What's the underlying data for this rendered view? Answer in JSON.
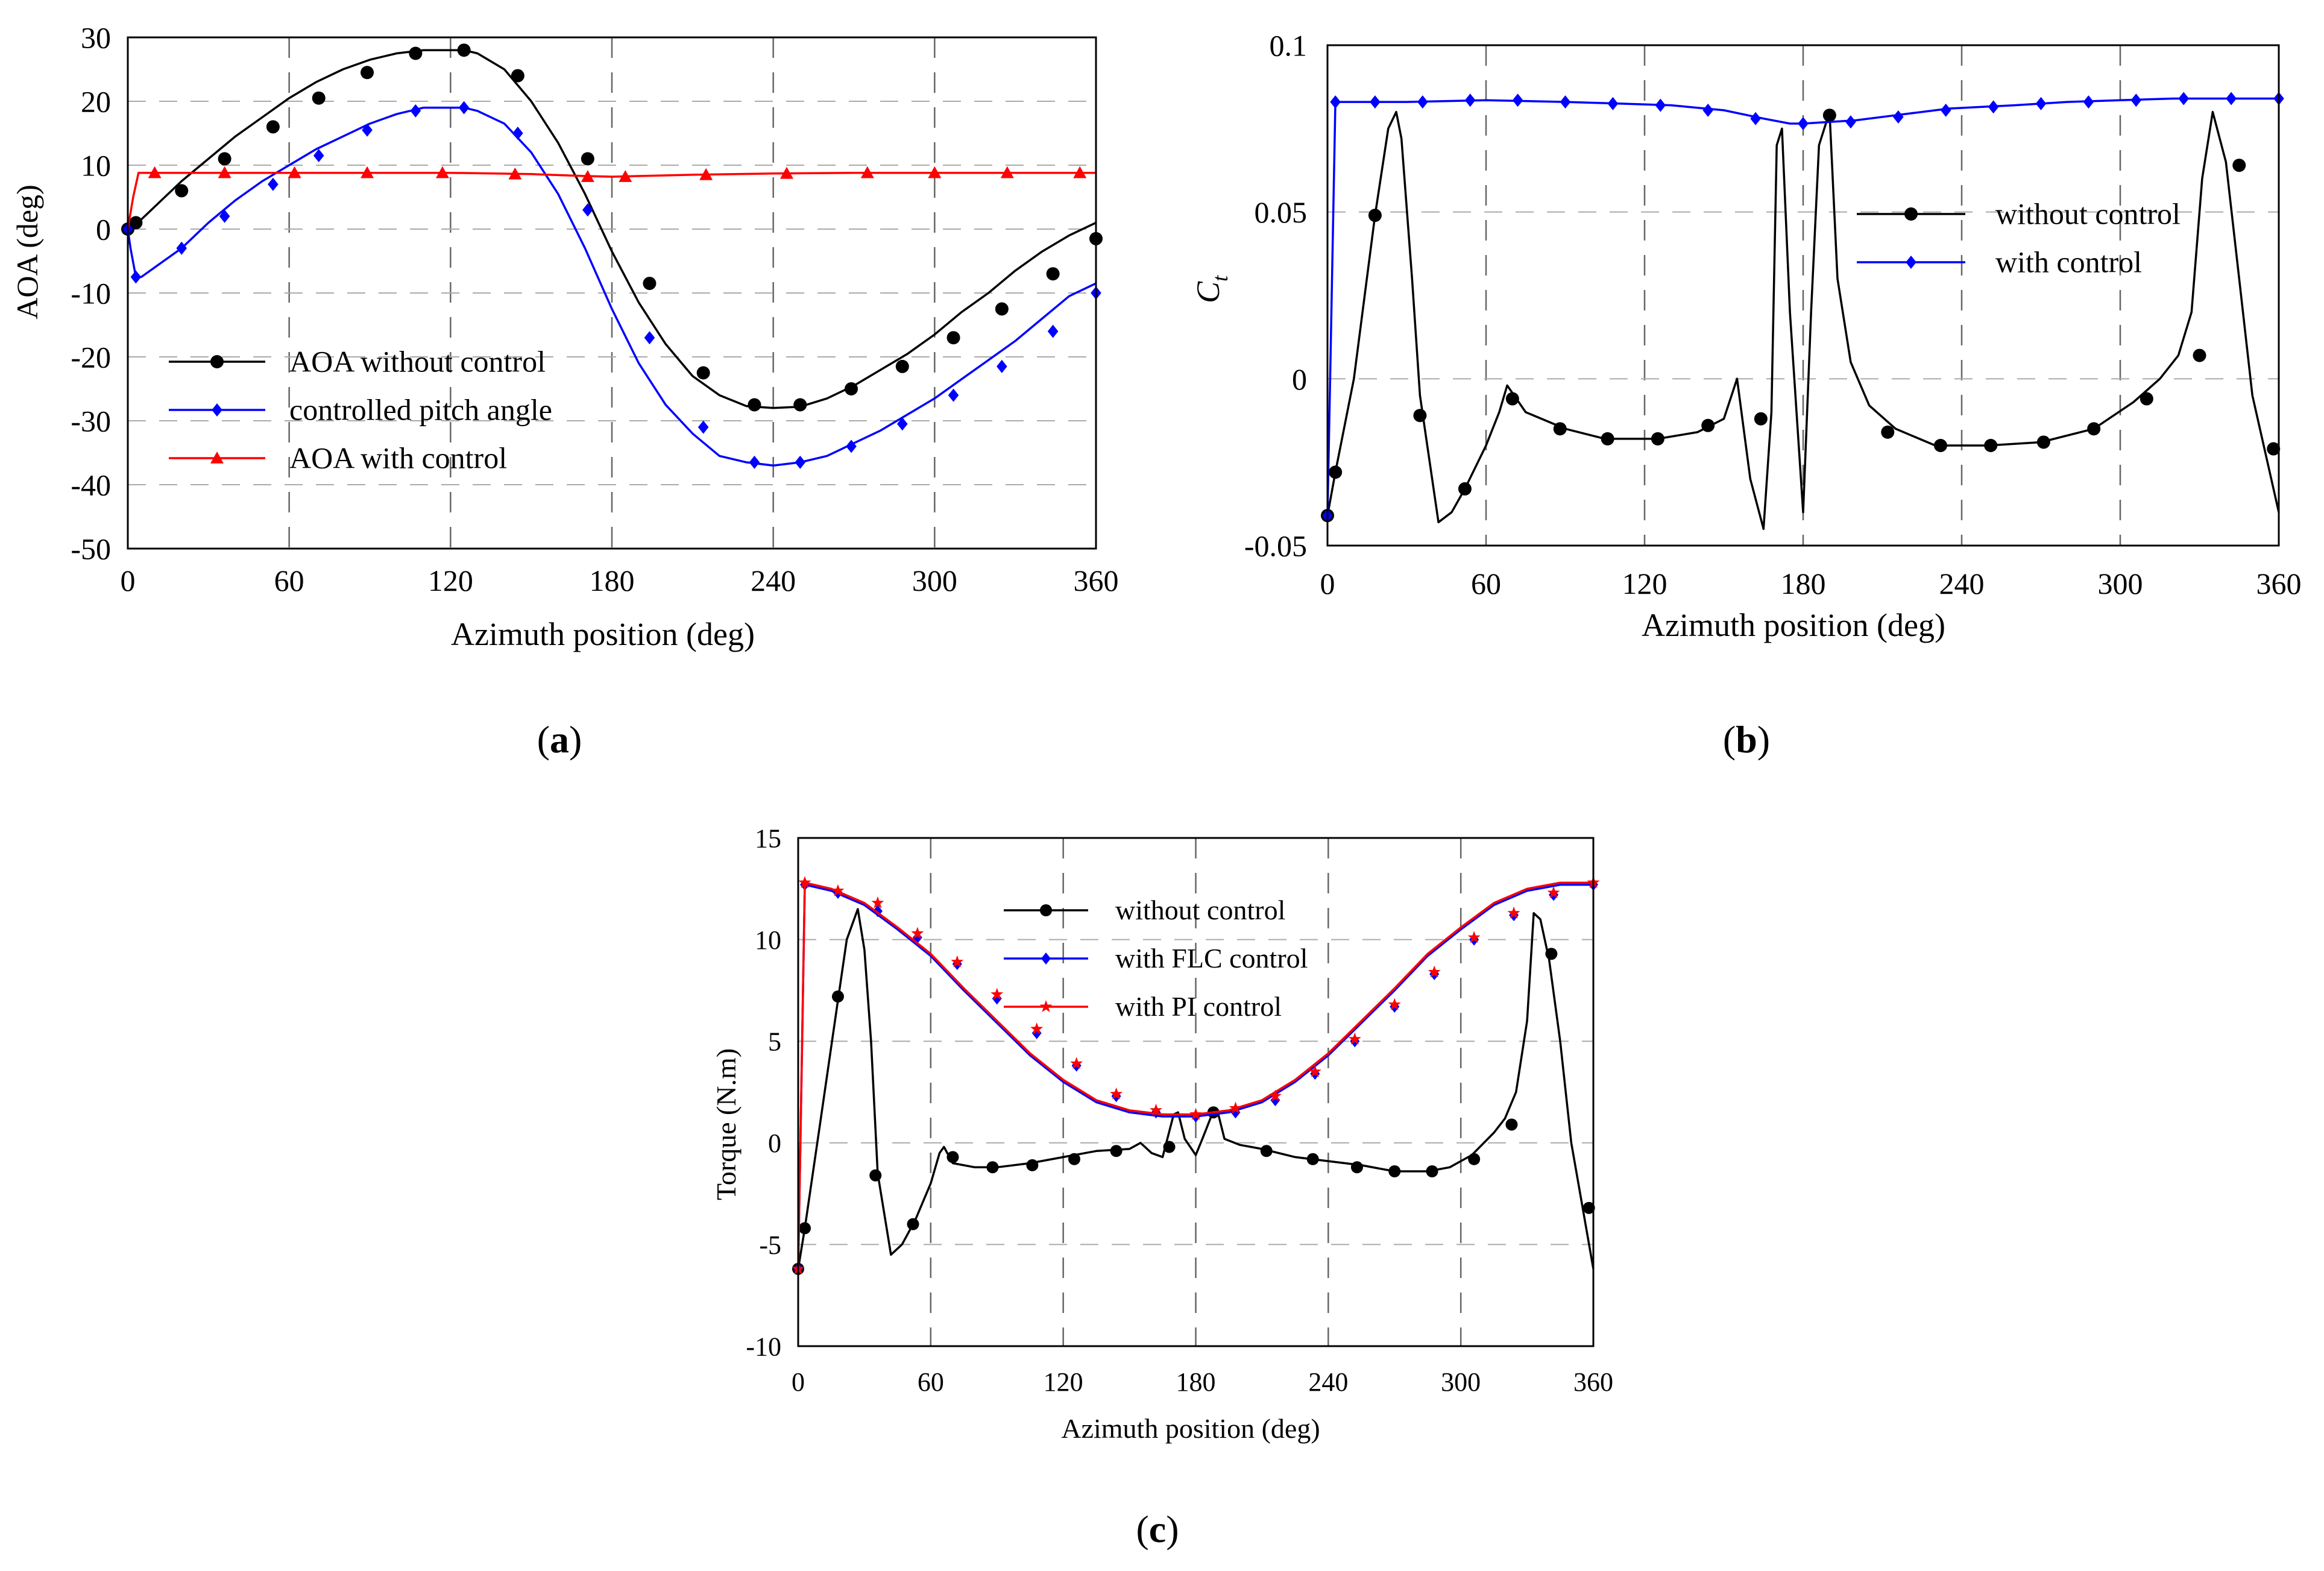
{
  "chart_data": [
    {
      "id": "a",
      "type": "line",
      "caption": "a",
      "xlabel": "Azimuth position (deg)",
      "ylabel": "AOA (deg)",
      "xlim": [
        0,
        360
      ],
      "ylim": [
        -50,
        30
      ],
      "xticks": [
        0,
        60,
        120,
        180,
        240,
        300,
        360
      ],
      "yticks": [
        30,
        20,
        10,
        0,
        -10,
        -20,
        -30,
        -40,
        -50
      ],
      "ytick_labels": [
        "30",
        "20",
        "10",
        "0",
        "-10",
        "-20",
        "-30",
        "-40",
        "-50"
      ],
      "grid_x": [
        60,
        120,
        180,
        240,
        300
      ],
      "legend_position": "lower-left",
      "series": [
        {
          "name": "AOA without control",
          "color": "#000000",
          "marker": "circle",
          "x": [
            0,
            2,
            5,
            10,
            20,
            30,
            40,
            50,
            60,
            70,
            80,
            90,
            100,
            110,
            120,
            125,
            130,
            140,
            150,
            160,
            170,
            180,
            190,
            200,
            210,
            220,
            230,
            240,
            250,
            260,
            270,
            280,
            290,
            300,
            310,
            320,
            330,
            340,
            350,
            360
          ],
          "y": [
            0,
            0.5,
            1.5,
            3.5,
            7.5,
            11,
            14.5,
            17.5,
            20.5,
            23,
            25,
            26.5,
            27.5,
            28,
            28,
            28,
            27.5,
            25,
            20,
            13.5,
            5.5,
            -3.5,
            -11.5,
            -18,
            -23,
            -26,
            -27.7,
            -28,
            -27.8,
            -26.5,
            -24.5,
            -22,
            -19.5,
            -16.5,
            -13,
            -10,
            -6.5,
            -3.5,
            -1,
            1
          ],
          "mx": [
            0,
            3,
            20,
            36,
            54,
            71,
            89,
            107,
            125,
            145,
            171,
            194,
            214,
            233,
            250,
            269,
            288,
            307,
            325,
            344,
            360
          ],
          "my": [
            0,
            1,
            6,
            11,
            16,
            20.5,
            24.5,
            27.5,
            28,
            24,
            11,
            -8.5,
            -22.5,
            -27.5,
            -27.5,
            -25,
            -21.5,
            -17,
            -12.5,
            -7,
            -1.5
          ]
        },
        {
          "name": "controlled pitch angle",
          "color": "#0000ff",
          "marker": "diamond",
          "x": [
            0,
            1,
            3,
            5,
            10,
            20,
            30,
            40,
            50,
            60,
            70,
            80,
            90,
            100,
            110,
            120,
            125,
            130,
            140,
            150,
            160,
            170,
            180,
            190,
            200,
            210,
            220,
            230,
            240,
            250,
            260,
            270,
            280,
            290,
            300,
            310,
            320,
            330,
            340,
            350,
            360
          ],
          "y": [
            0,
            -3,
            -7.5,
            -7.5,
            -6,
            -3,
            1,
            4.5,
            7.5,
            10,
            12.5,
            14.5,
            16.5,
            18,
            19,
            19,
            19,
            18.5,
            16.5,
            12,
            5.5,
            -3,
            -12.5,
            -21,
            -27.5,
            -32,
            -35.5,
            -36.5,
            -37,
            -36.5,
            -35.5,
            -33.5,
            -31.5,
            -29,
            -26.5,
            -23.5,
            -20.5,
            -17.5,
            -14,
            -10.5,
            -8.5
          ],
          "mx": [
            0,
            3,
            20,
            36,
            54,
            71,
            89,
            107,
            125,
            145,
            171,
            194,
            214,
            233,
            250,
            269,
            288,
            307,
            325,
            344,
            360
          ],
          "my": [
            0,
            -7.5,
            -3,
            2,
            7,
            11.5,
            15.5,
            18.5,
            19,
            15,
            3,
            -17,
            -31,
            -36.5,
            -36.5,
            -34,
            -30.5,
            -26,
            -21.5,
            -16,
            -10
          ]
        },
        {
          "name": "AOA with control",
          "color": "#ff0000",
          "marker": "triangle",
          "x": [
            0,
            2,
            4,
            10,
            30,
            60,
            90,
            120,
            150,
            170,
            180,
            190,
            210,
            240,
            270,
            300,
            330,
            360
          ],
          "y": [
            0,
            5,
            8.8,
            8.8,
            8.8,
            8.8,
            8.8,
            8.8,
            8.6,
            8.3,
            8.2,
            8.3,
            8.5,
            8.7,
            8.8,
            8.8,
            8.8,
            8.8
          ],
          "mx": [
            10,
            36,
            62,
            89,
            117,
            144,
            171,
            185,
            215,
            245,
            275,
            300,
            327,
            354
          ],
          "my": [
            8.8,
            8.8,
            8.8,
            8.8,
            8.8,
            8.6,
            8.2,
            8.2,
            8.5,
            8.7,
            8.8,
            8.8,
            8.8,
            8.8
          ]
        }
      ]
    },
    {
      "id": "b",
      "type": "line",
      "caption": "b",
      "xlabel": "Azimuth position (deg)",
      "ylabel": "C",
      "ylabel_sub": "t",
      "xlim": [
        0,
        360
      ],
      "ylim": [
        -0.05,
        0.1
      ],
      "xticks": [
        0,
        60,
        120,
        180,
        240,
        300,
        360
      ],
      "yticks": [
        0.1,
        0.05,
        0,
        -0.05
      ],
      "ytick_labels": [
        "0.1",
        "0.05",
        "0",
        "-0.05"
      ],
      "grid_x": [
        60,
        120,
        180,
        240,
        300
      ],
      "legend_position": "upper-right",
      "series": [
        {
          "name": "without control",
          "color": "#000000",
          "marker": "circle",
          "x": [
            0,
            3,
            10,
            18,
            23,
            26,
            28,
            32,
            35,
            42,
            47,
            52,
            60,
            65,
            68,
            75,
            90,
            105,
            125,
            140,
            150,
            155,
            160,
            165,
            168,
            170,
            172,
            175,
            180,
            183,
            186,
            190,
            193,
            198,
            205,
            215,
            230,
            250,
            270,
            290,
            305,
            315,
            322,
            327,
            331,
            335,
            340,
            345,
            350,
            360
          ],
          "y": [
            -0.041,
            -0.028,
            0.0,
            0.049,
            0.075,
            0.08,
            0.072,
            0.03,
            -0.005,
            -0.043,
            -0.04,
            -0.033,
            -0.02,
            -0.01,
            -0.002,
            -0.01,
            -0.015,
            -0.018,
            -0.018,
            -0.016,
            -0.012,
            0.0,
            -0.03,
            -0.045,
            -0.01,
            0.07,
            0.075,
            0.02,
            -0.04,
            0.02,
            0.07,
            0.08,
            0.03,
            0.005,
            -0.008,
            -0.015,
            -0.02,
            -0.02,
            -0.019,
            -0.015,
            -0.007,
            0.0,
            0.007,
            0.02,
            0.06,
            0.08,
            0.065,
            0.03,
            -0.005,
            -0.04
          ],
          "mx": [
            0,
            3,
            18,
            35,
            52,
            70,
            88,
            106,
            125,
            144,
            164,
            190,
            212,
            232,
            251,
            271,
            290,
            310,
            330,
            345,
            358
          ],
          "my": [
            -0.041,
            -0.028,
            0.049,
            -0.011,
            -0.033,
            -0.006,
            -0.015,
            -0.018,
            -0.018,
            -0.014,
            -0.012,
            0.079,
            -0.016,
            -0.02,
            -0.02,
            -0.019,
            -0.015,
            -0.006,
            0.007,
            0.064,
            -0.021
          ]
        },
        {
          "name": "with control",
          "color": "#0000ff",
          "marker": "diamond",
          "x": [
            0,
            1,
            3,
            10,
            30,
            60,
            90,
            110,
            130,
            150,
            165,
            175,
            180,
            190,
            200,
            215,
            235,
            260,
            280,
            300,
            320,
            340,
            360
          ],
          "y": [
            -0.041,
            0.0,
            0.083,
            0.083,
            0.083,
            0.0835,
            0.083,
            0.0825,
            0.082,
            0.0805,
            0.078,
            0.0765,
            0.0765,
            0.077,
            0.0775,
            0.079,
            0.081,
            0.082,
            0.083,
            0.0835,
            0.084,
            0.084,
            0.084
          ],
          "mx": [
            0,
            3,
            18,
            36,
            54,
            72,
            90,
            108,
            126,
            144,
            162,
            180,
            198,
            216,
            234,
            252,
            270,
            288,
            306,
            324,
            342,
            360
          ],
          "my": [
            -0.041,
            0.083,
            0.083,
            0.083,
            0.0835,
            0.0835,
            0.083,
            0.0825,
            0.082,
            0.0805,
            0.078,
            0.0765,
            0.077,
            0.0785,
            0.0805,
            0.0815,
            0.0825,
            0.083,
            0.0835,
            0.084,
            0.084,
            0.084
          ]
        }
      ]
    },
    {
      "id": "c",
      "type": "line",
      "caption": "c",
      "xlabel": "Azimuth position (deg)",
      "ylabel": "Torque (N.m)",
      "xlim": [
        0,
        360
      ],
      "ylim": [
        -10,
        15
      ],
      "xticks": [
        0,
        60,
        120,
        180,
        240,
        300,
        360
      ],
      "yticks": [
        15,
        10,
        5,
        0,
        -5,
        -10
      ],
      "ytick_labels": [
        "15",
        "10",
        "5",
        "0",
        "-5",
        "-10"
      ],
      "grid_x": [
        60,
        120,
        180,
        240,
        300
      ],
      "legend_position": "top-center",
      "series": [
        {
          "name": "without control",
          "color": "#000000",
          "marker": "circle",
          "x": [
            0,
            3,
            10,
            18,
            22,
            27,
            30,
            33,
            36,
            42,
            47,
            53,
            60,
            64,
            66,
            70,
            80,
            90,
            105,
            120,
            135,
            150,
            155,
            160,
            165,
            170,
            172,
            175,
            180,
            183,
            187,
            190,
            193,
            200,
            210,
            225,
            240,
            255,
            270,
            285,
            295,
            305,
            315,
            320,
            325,
            330,
            333,
            336,
            340,
            345,
            350,
            360
          ],
          "y": [
            -6.2,
            -4.2,
            1,
            7,
            10,
            11.5,
            9.5,
            5,
            -1.5,
            -5.5,
            -5,
            -3.8,
            -2,
            -0.5,
            -0.2,
            -1,
            -1.2,
            -1.2,
            -1,
            -0.7,
            -0.4,
            -0.3,
            0,
            -0.5,
            -0.7,
            1.4,
            1.5,
            0.2,
            -0.6,
            0.2,
            1.3,
            1.5,
            0.2,
            -0.1,
            -0.3,
            -0.7,
            -0.9,
            -1.1,
            -1.4,
            -1.4,
            -1.2,
            -0.6,
            0.5,
            1.2,
            2.5,
            6,
            11.3,
            11,
            9,
            5,
            0,
            -6.2
          ],
          "mx": [
            0,
            3,
            18,
            35,
            52,
            70,
            88,
            106,
            125,
            144,
            168,
            188,
            212,
            233,
            253,
            270,
            287,
            306,
            323,
            341,
            358
          ],
          "my": [
            -6.2,
            -4.2,
            7.2,
            -1.6,
            -4,
            -0.7,
            -1.2,
            -1.1,
            -0.8,
            -0.4,
            -0.2,
            1.5,
            -0.4,
            -0.8,
            -1.2,
            -1.4,
            -1.4,
            -0.8,
            0.9,
            9.3,
            -3.2
          ]
        },
        {
          "name": "with FLC control",
          "color": "#0000ff",
          "marker": "diamond",
          "x": [
            0,
            1,
            3,
            15,
            30,
            45,
            60,
            75,
            90,
            105,
            120,
            135,
            150,
            165,
            180,
            195,
            210,
            225,
            240,
            255,
            270,
            285,
            300,
            315,
            330,
            345,
            360
          ],
          "y": [
            -6.2,
            0,
            12.7,
            12.4,
            11.7,
            10.5,
            9.2,
            7.5,
            5.9,
            4.3,
            3,
            2,
            1.5,
            1.3,
            1.3,
            1.5,
            2,
            3,
            4.3,
            5.9,
            7.5,
            9.2,
            10.5,
            11.7,
            12.4,
            12.7,
            12.7
          ],
          "mx": [
            0,
            3,
            18,
            36,
            54,
            72,
            90,
            108,
            126,
            144,
            162,
            180,
            198,
            216,
            234,
            252,
            270,
            288,
            306,
            324,
            342,
            360
          ],
          "my": [
            -6.2,
            12.7,
            12.3,
            11.4,
            10.1,
            8.8,
            7.1,
            5.4,
            3.8,
            2.3,
            1.5,
            1.3,
            1.5,
            2.1,
            3.4,
            5,
            6.7,
            8.3,
            10,
            11.2,
            12.2,
            12.7
          ]
        },
        {
          "name": "with PI control",
          "color": "#ff0000",
          "marker": "star",
          "x": [
            0,
            1,
            3,
            15,
            30,
            45,
            60,
            75,
            90,
            105,
            120,
            135,
            150,
            165,
            180,
            195,
            210,
            225,
            240,
            255,
            270,
            285,
            300,
            315,
            330,
            345,
            360
          ],
          "y": [
            -6.2,
            0,
            12.8,
            12.5,
            11.8,
            10.6,
            9.3,
            7.6,
            6,
            4.4,
            3.1,
            2.1,
            1.6,
            1.4,
            1.4,
            1.6,
            2.1,
            3.1,
            4.4,
            6,
            7.6,
            9.3,
            10.6,
            11.8,
            12.5,
            12.8,
            12.8
          ],
          "mx": [
            0,
            3,
            18,
            36,
            54,
            72,
            90,
            108,
            126,
            144,
            162,
            180,
            198,
            216,
            234,
            252,
            270,
            288,
            306,
            324,
            342,
            360
          ],
          "my": [
            -6.2,
            12.8,
            12.4,
            11.8,
            10.3,
            8.9,
            7.3,
            5.6,
            3.9,
            2.4,
            1.6,
            1.4,
            1.7,
            2.3,
            3.5,
            5.1,
            6.8,
            8.4,
            10.1,
            11.3,
            12.3,
            12.8
          ]
        }
      ]
    }
  ]
}
